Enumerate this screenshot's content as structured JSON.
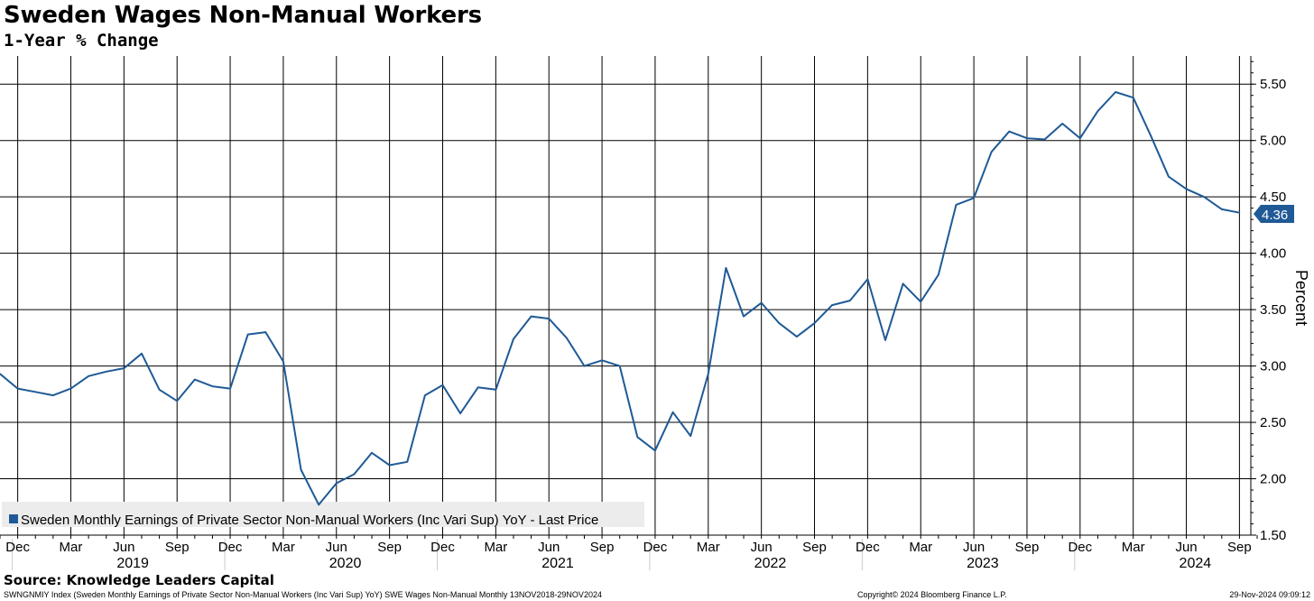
{
  "header": {
    "title": "Sweden Wages Non-Manual Workers",
    "subtitle": "1-Year % Change"
  },
  "footer": {
    "source": "Source: Knowledge Leaders Capital",
    "left": "SWNGNMIY Index (Sweden Monthly Earnings of Private Sector Non-Manual Workers (Inc Vari Sup) YoY) SWE Wages Non-Manual  Monthly 13NOV2018-29NOV2024",
    "mid": "Copyright© 2024 Bloomberg Finance L.P.",
    "right": "29-Nov-2024 09:09:12"
  },
  "colors": {
    "series": "#1f5a96",
    "grid": "#000000",
    "legend_bg": "#ececec"
  },
  "chart_data": {
    "type": "line",
    "xlabel": "",
    "ylabel": "Percent",
    "ylim": [
      1.5,
      5.75
    ],
    "y_axis_side": "right",
    "y_ticks": [
      "1.50",
      "2.00",
      "2.50",
      "3.00",
      "3.50",
      "4.00",
      "4.50",
      "5.00",
      "5.50"
    ],
    "x_month_ticks": [
      "Dec",
      "Mar",
      "Jun",
      "Sep",
      "Dec",
      "Mar",
      "Jun",
      "Sep",
      "Dec",
      "Mar",
      "Jun",
      "Sep",
      "Dec",
      "Mar",
      "Jun",
      "Sep",
      "Dec",
      "Mar",
      "Jun",
      "Sep",
      "Dec",
      "Mar",
      "Jun",
      "Sep"
    ],
    "x_year_labels": [
      "2019",
      "2020",
      "2021",
      "2022",
      "2023",
      "2024"
    ],
    "grid": true,
    "legend_position": "bottom-left",
    "last_value_label": "4.36",
    "series": [
      {
        "name": "Sweden Monthly Earnings of Private Sector Non-Manual Workers (Inc Vari Sup) YoY - Last Price",
        "x": [
          "2018-11",
          "2018-12",
          "2019-01",
          "2019-02",
          "2019-03",
          "2019-04",
          "2019-05",
          "2019-06",
          "2019-07",
          "2019-08",
          "2019-09",
          "2019-10",
          "2019-11",
          "2019-12",
          "2020-01",
          "2020-02",
          "2020-03",
          "2020-04",
          "2020-05",
          "2020-06",
          "2020-07",
          "2020-08",
          "2020-09",
          "2020-10",
          "2020-11",
          "2020-12",
          "2021-01",
          "2021-02",
          "2021-03",
          "2021-04",
          "2021-05",
          "2021-06",
          "2021-07",
          "2021-08",
          "2021-09",
          "2021-10",
          "2021-11",
          "2021-12",
          "2022-01",
          "2022-02",
          "2022-03",
          "2022-04",
          "2022-05",
          "2022-06",
          "2022-07",
          "2022-08",
          "2022-09",
          "2022-10",
          "2022-11",
          "2022-12",
          "2023-01",
          "2023-02",
          "2023-03",
          "2023-04",
          "2023-05",
          "2023-06",
          "2023-07",
          "2023-08",
          "2023-09",
          "2023-10",
          "2023-11",
          "2023-12",
          "2024-01",
          "2024-02",
          "2024-03",
          "2024-04",
          "2024-05",
          "2024-06",
          "2024-07",
          "2024-08",
          "2024-09"
        ],
        "values": [
          2.93,
          2.8,
          2.77,
          2.74,
          2.8,
          2.91,
          2.95,
          2.98,
          3.11,
          2.79,
          2.69,
          2.88,
          2.82,
          2.8,
          3.28,
          3.3,
          3.04,
          2.08,
          1.77,
          1.96,
          2.04,
          2.23,
          2.12,
          2.15,
          2.74,
          2.83,
          2.58,
          2.81,
          2.79,
          3.24,
          3.44,
          3.42,
          3.25,
          3.0,
          3.05,
          3.0,
          2.37,
          2.25,
          2.59,
          2.38,
          2.93,
          3.87,
          3.44,
          3.56,
          3.38,
          3.26,
          3.38,
          3.54,
          3.58,
          3.77,
          3.23,
          3.73,
          3.57,
          3.81,
          4.43,
          4.49,
          4.9,
          5.08,
          5.02,
          5.01,
          5.15,
          5.02,
          5.26,
          5.43,
          5.38,
          5.04,
          4.68,
          4.57,
          4.5,
          4.39,
          4.36
        ]
      }
    ]
  }
}
